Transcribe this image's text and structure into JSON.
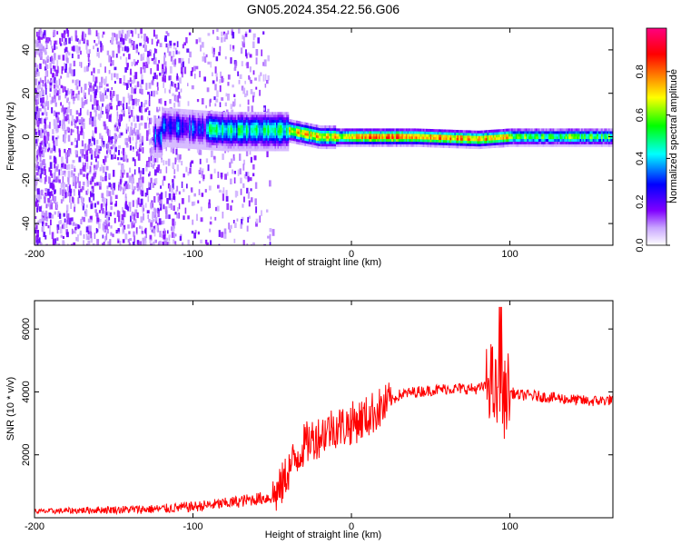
{
  "title": "GN05.2024.354.22.56.G06",
  "chart_data": [
    {
      "type": "heatmap",
      "xlabel": "Height of straight line (km)",
      "ylabel": "Frequency (Hz)",
      "xlim": [
        -200,
        165
      ],
      "ylim": [
        -50,
        50
      ],
      "xticks": [
        -200,
        -100,
        0,
        100
      ],
      "yticks": [
        -40,
        -20,
        0,
        20,
        40
      ],
      "colorbar": {
        "label": "Normalized spectral amplitude",
        "range": [
          0,
          1
        ],
        "ticks": [
          "0.0",
          "0.2",
          "0.4",
          "0.6",
          "0.8"
        ],
        "colors": [
          "#ffffff",
          "#c9a6ff",
          "#8000ff",
          "#0000ff",
          "#00ffff",
          "#00ff00",
          "#ffff00",
          "#ff8000",
          "#ff0000",
          "#ff0080"
        ]
      },
      "ridge": {
        "description_points": [
          {
            "x": -120,
            "y": 5
          },
          {
            "x": -80,
            "y": 3
          },
          {
            "x": -40,
            "y": 3
          },
          {
            "x": -20,
            "y": 0
          },
          {
            "x": 0,
            "y": 0
          },
          {
            "x": 40,
            "y": 0
          },
          {
            "x": 80,
            "y": -1
          },
          {
            "x": 100,
            "y": 0
          },
          {
            "x": 165,
            "y": 0
          }
        ]
      }
    },
    {
      "type": "line",
      "xlabel": "Height of straight line (km)",
      "ylabel": "SNR (10 * v/v)",
      "xlim": [
        -200,
        165
      ],
      "ylim": [
        0,
        6900
      ],
      "xticks": [
        -200,
        -100,
        0,
        100
      ],
      "yticks": [
        2000,
        4000,
        6000
      ],
      "color": "#ff0000",
      "series": [
        {
          "x": [
            -200,
            -180,
            -160,
            -140,
            -120,
            -100,
            -80,
            -60,
            -50,
            -45,
            -40,
            -35,
            -30,
            -25,
            -20,
            -15,
            -10,
            -5,
            0,
            5,
            10,
            15,
            20,
            25,
            30,
            40,
            50,
            60,
            70,
            80,
            85,
            88,
            90,
            92,
            94,
            96,
            98,
            100,
            105,
            110,
            120,
            130,
            140,
            150,
            165
          ],
          "values": [
            200,
            220,
            250,
            260,
            280,
            350,
            450,
            600,
            650,
            900,
            1500,
            1900,
            2300,
            2500,
            2600,
            2800,
            2900,
            2900,
            3000,
            3100,
            3200,
            3400,
            3500,
            3700,
            3900,
            4000,
            4050,
            4100,
            4100,
            4100,
            4200,
            4500,
            4000,
            3800,
            4300,
            3600,
            4100,
            4000,
            3900,
            3900,
            3850,
            3800,
            3750,
            3700,
            3750
          ]
        }
      ]
    }
  ]
}
